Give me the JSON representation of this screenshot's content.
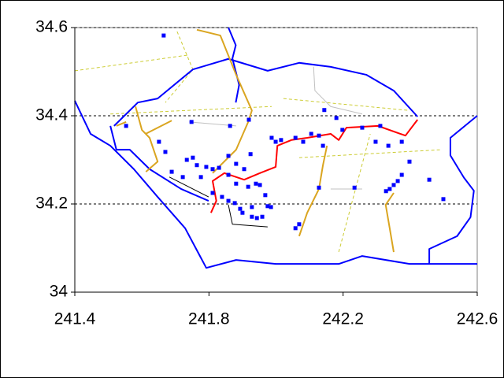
{
  "chart_data": {
    "type": "scatter",
    "xlim": [
      241.4,
      242.6
    ],
    "ylim": [
      34,
      34.6
    ],
    "xticks": [
      241.4,
      241.8,
      242.2,
      242.6
    ],
    "yticks": [
      34,
      34.2,
      34.4,
      34.6
    ],
    "grid": true,
    "series": [
      {
        "type": "line",
        "color": "#cccc33",
        "dash": true,
        "x": [
          241.4,
          241.741
        ],
        "values": [
          34.502,
          34.538
        ]
      },
      {
        "type": "line",
        "color": "#cccc33",
        "dash": true,
        "x": [
          241.506,
          241.987
        ],
        "values": [
          34.404,
          34.421
        ]
      },
      {
        "type": "line",
        "color": "#cccc33",
        "dash": true,
        "x": [
          242.022,
          242.398
        ],
        "values": [
          34.439,
          34.412
        ]
      },
      {
        "type": "line",
        "color": "#cccc33",
        "dash": true,
        "x": [
          242.069,
          242.492
        ],
        "values": [
          34.305,
          34.323
        ]
      },
      {
        "type": "line",
        "color": "#cccc33",
        "dash": true,
        "x": [
          242.187,
          242.281
        ],
        "values": [
          34.091,
          34.359
        ]
      },
      {
        "type": "line",
        "color": "#cccc33",
        "dash": true,
        "x": [
          241.705,
          241.752,
          241.67
        ],
        "values": [
          34.591,
          34.505,
          34.43
        ]
      },
      {
        "type": "line",
        "color": "#c0c0c0",
        "x": [
          242.112,
          242.116,
          242.163,
          242.257
        ],
        "values": [
          34.511,
          34.457,
          34.421,
          34.404
        ]
      },
      {
        "type": "line",
        "color": "#c0c0c0",
        "x": [
          241.741,
          241.881
        ],
        "values": [
          34.386,
          34.377
        ]
      },
      {
        "type": "line",
        "color": "#c0c0c0",
        "x": [
          242.163,
          242.257
        ],
        "values": [
          34.234,
          34.234
        ]
      },
      {
        "type": "line",
        "color": "#000000",
        "x": [
          241.858,
          241.87,
          241.975
        ],
        "values": [
          34.198,
          34.154,
          34.148
        ]
      },
      {
        "type": "line",
        "color": "#000000",
        "x": [
          241.682,
          241.752,
          241.799
        ],
        "values": [
          34.261,
          34.234,
          34.216
        ]
      },
      {
        "type": "line",
        "color": "#0000ff",
        "x": [
          241.4,
          241.447,
          241.506,
          241.576,
          241.647,
          241.729,
          241.792,
          241.881,
          241.999,
          242.187,
          242.257,
          242.398,
          242.457,
          242.6
        ],
        "values": [
          34.434,
          34.359,
          34.332,
          34.279,
          34.216,
          34.145,
          34.055,
          34.073,
          34.064,
          34.064,
          34.082,
          34.064,
          34.064,
          34.064
        ]
      },
      {
        "type": "line",
        "color": "#0000ff",
        "x": [
          242.6,
          242.52,
          242.52,
          242.56,
          242.59,
          242.58,
          242.54,
          242.457,
          242.457
        ],
        "values": [
          34.4,
          34.35,
          34.31,
          34.26,
          34.23,
          34.17,
          34.127,
          34.098,
          34.064
        ]
      },
      {
        "type": "line",
        "color": "#0000ff",
        "x": [
          241.517,
          241.588,
          241.647,
          241.752,
          241.858,
          241.975,
          242.069,
          242.163,
          242.269,
          242.351,
          242.422
        ],
        "values": [
          34.377,
          34.43,
          34.439,
          34.505,
          34.529,
          34.502,
          34.52,
          34.511,
          34.493,
          34.457,
          34.398
        ]
      },
      {
        "type": "line",
        "color": "#0000ff",
        "x": [
          241.506,
          241.524,
          241.564,
          241.623,
          241.717,
          241.799
        ],
        "values": [
          34.377,
          34.323,
          34.323,
          34.279,
          34.234,
          34.207
        ]
      },
      {
        "type": "line",
        "color": "#0000ff",
        "x": [
          241.858,
          241.88,
          241.87,
          241.89,
          241.88
        ],
        "values": [
          34.6,
          34.56,
          34.53,
          34.47,
          34.43
        ]
      },
      {
        "type": "line",
        "color": "#daa520",
        "x": [
          241.764,
          241.834,
          241.881,
          241.928,
          241.917,
          241.881,
          241.811
        ],
        "values": [
          34.595,
          34.582,
          34.493,
          34.412,
          34.386,
          34.323,
          34.27
        ]
      },
      {
        "type": "line",
        "color": "#daa520",
        "x": [
          241.581,
          241.6,
          241.623,
          241.647,
          241.612
        ],
        "values": [
          34.421,
          34.368,
          34.35,
          34.296,
          34.273
        ]
      },
      {
        "type": "line",
        "color": "#daa520",
        "x": [
          241.611,
          241.689
        ],
        "values": [
          34.359,
          34.389
        ]
      },
      {
        "type": "line",
        "color": "#daa520",
        "x": [
          241.524,
          241.553
        ],
        "values": [
          34.377,
          34.386
        ]
      },
      {
        "type": "line",
        "color": "#daa520",
        "x": [
          242.152,
          242.14,
          242.128,
          242.093,
          242.069
        ],
        "values": [
          34.332,
          34.288,
          34.234,
          34.18,
          34.127
        ]
      },
      {
        "type": "line",
        "color": "#daa520",
        "x": [
          242.351,
          242.327,
          242.339,
          242.351
        ],
        "values": [
          34.225,
          34.198,
          34.145,
          34.091
        ]
      },
      {
        "type": "line",
        "color": "#ff0000",
        "x": [
          241.806,
          241.822,
          241.811,
          241.846,
          241.905,
          241.952,
          241.999,
          242.004,
          242.046,
          242.093,
          242.163,
          242.187,
          242.21,
          242.304,
          242.386,
          242.422
        ],
        "values": [
          34.18,
          34.207,
          34.252,
          34.27,
          34.255,
          34.27,
          34.284,
          34.332,
          34.345,
          34.35,
          34.359,
          34.345,
          34.373,
          34.377,
          34.355,
          34.391
        ]
      },
      {
        "type": "scatter",
        "color": "#0000ff",
        "x": [
          241.665,
          241.748,
          241.863,
          241.919,
          241.651,
          241.67,
          241.734,
          241.752,
          241.764,
          241.792,
          241.776,
          241.83,
          241.858,
          241.924,
          241.881,
          241.905,
          241.689,
          241.722,
          241.858,
          241.881,
          241.94,
          241.952,
          241.917,
          241.811,
          241.839,
          241.858,
          241.877,
          241.893,
          241.928,
          241.9,
          241.928,
          241.943,
          241.959,
          241.975,
          241.985,
          241.968,
          241.987,
          241.999,
          242.015,
          242.058,
          242.081,
          242.105,
          242.128,
          242.14,
          242.144,
          242.18,
          242.198,
          242.257,
          242.297,
          242.335,
          242.311,
          242.375,
          242.398,
          242.375,
          242.363,
          242.351,
          242.328,
          242.339,
          242.457,
          242.499,
          242.234,
          242.128,
          242.069,
          242.058,
          241.553,
          241.811
        ],
        "values": [
          34.582,
          34.386,
          34.377,
          34.391,
          34.341,
          34.318,
          34.3,
          34.305,
          34.288,
          34.284,
          34.261,
          34.282,
          34.309,
          34.313,
          34.291,
          34.279,
          34.273,
          34.261,
          34.266,
          34.246,
          34.246,
          34.243,
          34.239,
          34.225,
          34.216,
          34.207,
          34.202,
          34.189,
          34.193,
          34.18,
          34.171,
          34.168,
          34.171,
          34.195,
          34.193,
          34.22,
          34.35,
          34.341,
          34.345,
          34.35,
          34.341,
          34.359,
          34.355,
          34.332,
          34.413,
          34.395,
          34.368,
          34.373,
          34.341,
          34.332,
          34.377,
          34.341,
          34.296,
          34.266,
          34.252,
          34.243,
          34.229,
          34.234,
          34.255,
          34.211,
          34.237,
          34.237,
          34.154,
          34.145,
          34.377,
          34.279
        ]
      }
    ]
  }
}
